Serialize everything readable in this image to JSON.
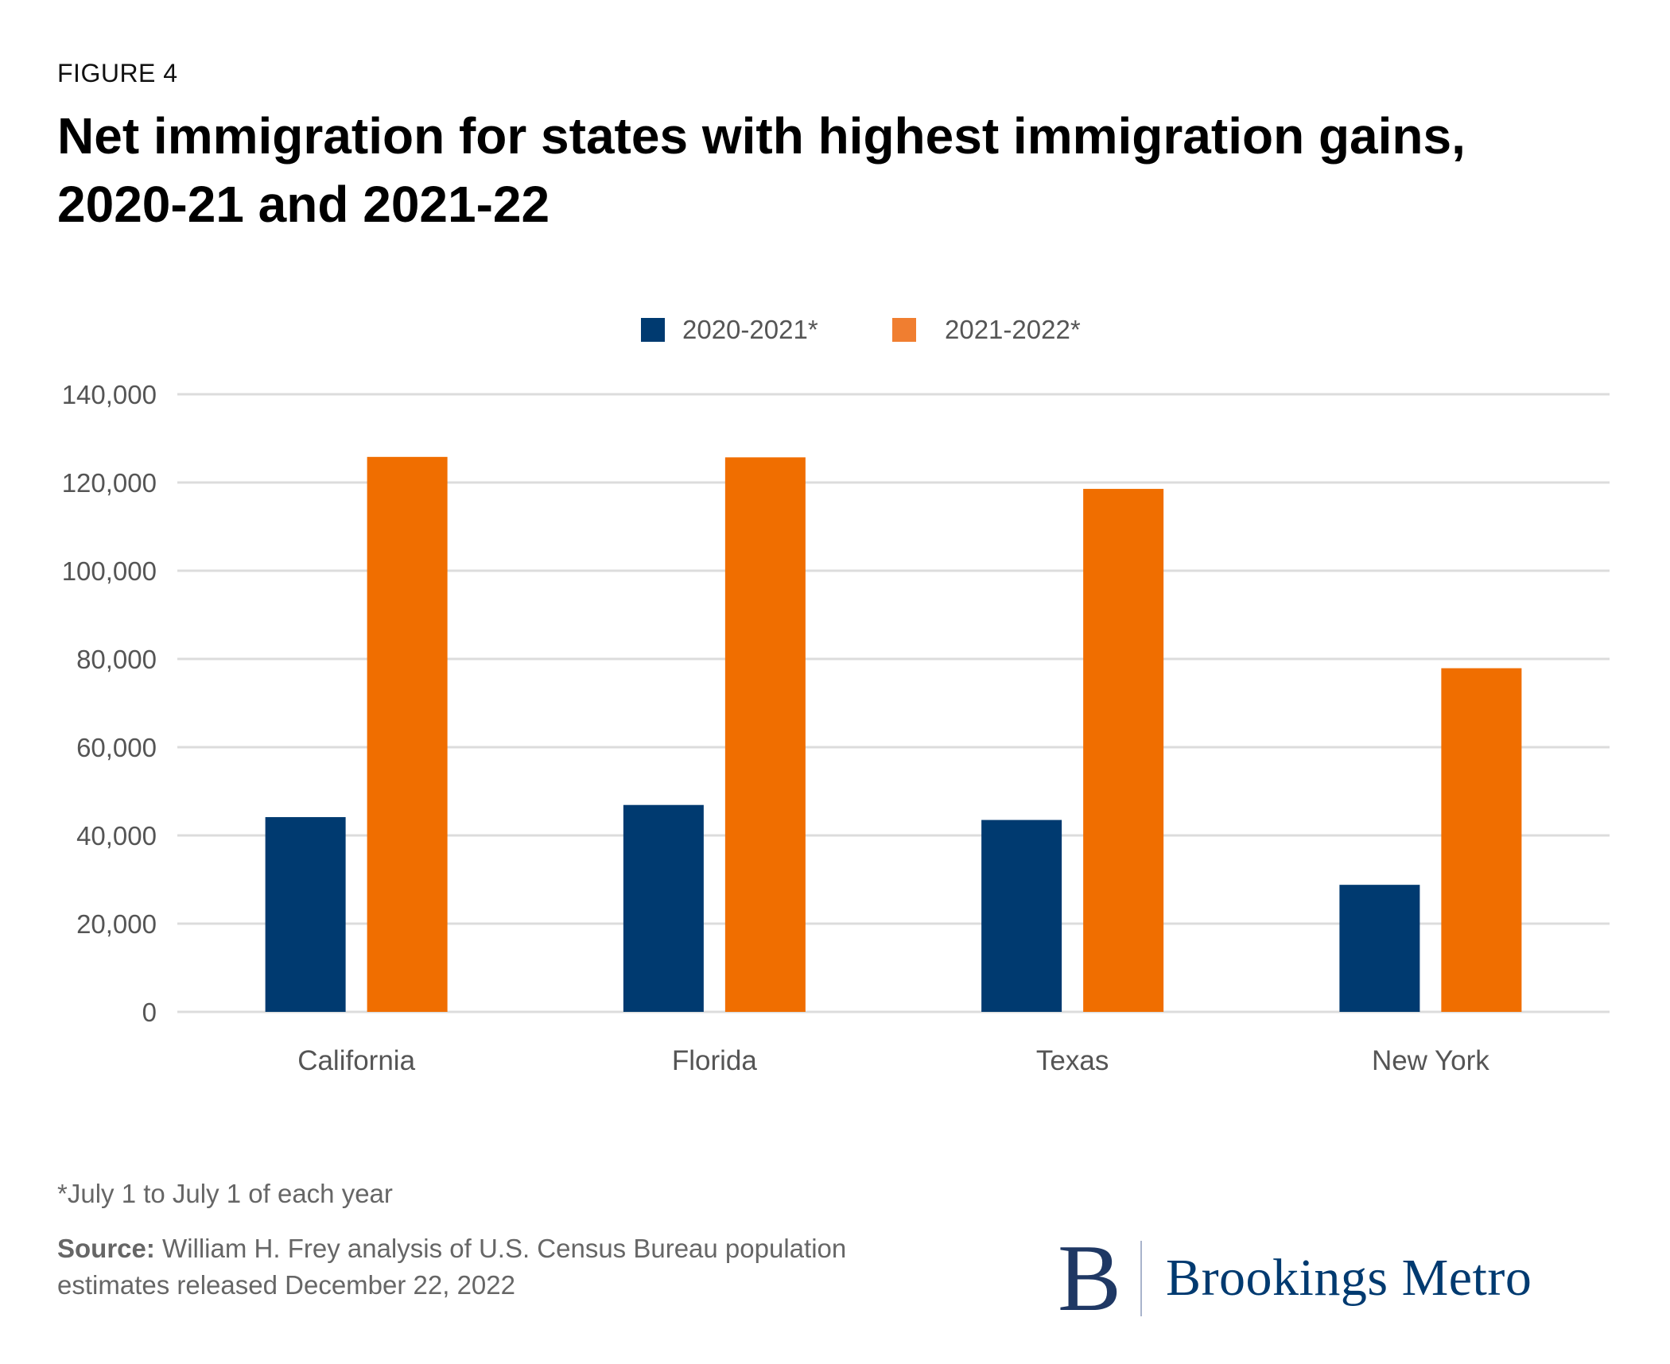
{
  "figure_label": "FIGURE 4",
  "title_line1": "Net immigration for states with highest immigration gains,",
  "title_line2": "2020-21 and 2021-22",
  "legend": [
    {
      "label": "2020-2021*",
      "color": "#003a70"
    },
    {
      "label": "2021-2022*",
      "color": "#f06e00"
    }
  ],
  "footnote": "*July 1 to July 1 of each year",
  "source": {
    "prefix": "Source:",
    "text": " William H. Frey analysis of U.S. Census Bureau population estimates released December 22, 2022"
  },
  "logo": {
    "mark": "B",
    "text": "Brookings Metro"
  },
  "chart_data": {
    "type": "bar",
    "title": "Net immigration for states with highest immigration gains, 2020-21 and 2021-22",
    "xlabel": "",
    "ylabel": "",
    "categories": [
      "California",
      "Florida",
      "Texas",
      "New York"
    ],
    "series": [
      {
        "name": "2020-2021*",
        "color": "#003a70",
        "values": [
          44150,
          46900,
          43500,
          28800
        ]
      },
      {
        "name": "2021-2022*",
        "color": "#f06e00",
        "values": [
          125800,
          125700,
          118550,
          77900
        ]
      }
    ],
    "ylim": [
      0,
      140000
    ],
    "yticks": [
      0,
      20000,
      40000,
      60000,
      80000,
      100000,
      120000,
      140000
    ],
    "ytick_labels": [
      "0",
      "20,000",
      "40,000",
      "60,000",
      "80,000",
      "100,000",
      "120,000",
      "140,000"
    ],
    "grid": true,
    "legend_position": "top-center"
  }
}
